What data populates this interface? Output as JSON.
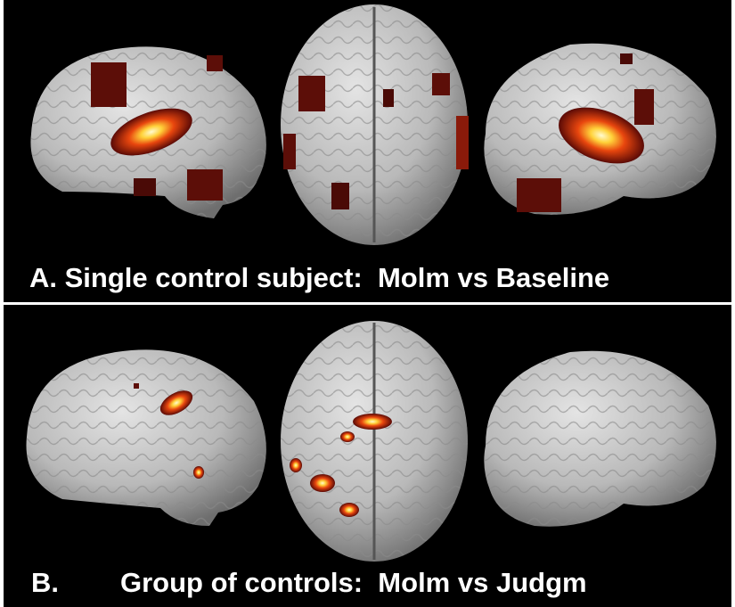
{
  "panel_a": {
    "caption": "A. Single control subject:  Molm vs Baseline"
  },
  "panel_b": {
    "letter": "B.",
    "caption": "Group of controls:  Molm vs Judgm"
  }
}
